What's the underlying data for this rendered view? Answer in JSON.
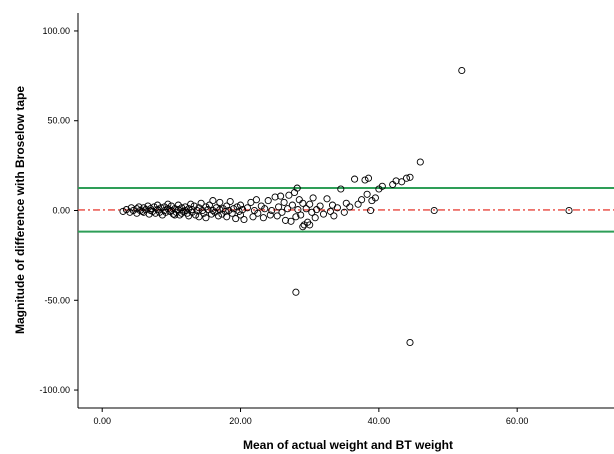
{
  "chart_data": {
    "type": "scatter",
    "title": "",
    "xlabel": "Mean of actual weight and BT weight",
    "ylabel": "Magnitude of difference with Broselow tape",
    "xlim": [
      -3.5,
      74.0
    ],
    "ylim": [
      -110.0,
      110.0
    ],
    "x_ticks": [
      0,
      20,
      40,
      60
    ],
    "x_tick_labels": [
      "0.00",
      "20.00",
      "40.00",
      "60.00"
    ],
    "y_ticks": [
      -100,
      -50,
      0,
      50,
      100
    ],
    "y_tick_labels": [
      "-100.00",
      "-50.00",
      "0.00",
      "50.00",
      "100.00"
    ],
    "grid": false,
    "reference_lines": [
      {
        "y": 12.5,
        "color": "#2e9e57",
        "style": "solid"
      },
      {
        "y": 0.3,
        "color": "#e8453c",
        "style": "dash-dot"
      },
      {
        "y": -11.8,
        "color": "#2e9e57",
        "style": "solid"
      }
    ],
    "marker_color": "#000000",
    "series": [
      {
        "points": [
          [
            3.0,
            -0.5
          ],
          [
            3.5,
            0.5
          ],
          [
            4.0,
            -1.0
          ],
          [
            4.2,
            1.5
          ],
          [
            4.5,
            0.0
          ],
          [
            5.0,
            1.0
          ],
          [
            5.0,
            -1.5
          ],
          [
            5.3,
            2.0
          ],
          [
            5.5,
            0.0
          ],
          [
            5.8,
            -0.5
          ],
          [
            6.0,
            1.5
          ],
          [
            6.0,
            -1.0
          ],
          [
            6.3,
            0.5
          ],
          [
            6.6,
            2.5
          ],
          [
            6.8,
            -2.0
          ],
          [
            7.0,
            0.0
          ],
          [
            7.0,
            1.0
          ],
          [
            7.3,
            -0.5
          ],
          [
            7.5,
            2.0
          ],
          [
            7.7,
            -1.5
          ],
          [
            8.0,
            0.5
          ],
          [
            8.0,
            3.0
          ],
          [
            8.3,
            -1.0
          ],
          [
            8.5,
            1.5
          ],
          [
            8.7,
            -2.5
          ],
          [
            9.0,
            0.0
          ],
          [
            9.0,
            2.0
          ],
          [
            9.2,
            -1.0
          ],
          [
            9.5,
            1.0
          ],
          [
            9.5,
            3.5
          ],
          [
            9.8,
            -0.5
          ],
          [
            10.0,
            0.0
          ],
          [
            10.0,
            2.5
          ],
          [
            10.3,
            -2.0
          ],
          [
            10.5,
            1.0
          ],
          [
            10.7,
            -1.0
          ],
          [
            11.0,
            0.5
          ],
          [
            11.0,
            3.0
          ],
          [
            11.2,
            -2.5
          ],
          [
            11.5,
            1.5
          ],
          [
            11.7,
            -0.5
          ],
          [
            12.0,
            0.0
          ],
          [
            12.0,
            2.0
          ],
          [
            12.3,
            -1.5
          ],
          [
            12.5,
            1.0
          ],
          [
            12.8,
            3.5
          ],
          [
            13.0,
            -1.0
          ],
          [
            13.0,
            0.5
          ],
          [
            13.3,
            2.5
          ],
          [
            13.5,
            -2.5
          ],
          [
            13.7,
            0.0
          ],
          [
            14.0,
            1.5
          ],
          [
            14.0,
            -3.5
          ],
          [
            14.3,
            4.0
          ],
          [
            14.5,
            0.0
          ],
          [
            14.7,
            -1.5
          ],
          [
            15.0,
            2.0
          ],
          [
            15.0,
            -4.0
          ],
          [
            15.3,
            0.5
          ],
          [
            15.5,
            3.0
          ],
          [
            15.8,
            -2.0
          ],
          [
            16.0,
            0.0
          ],
          [
            16.0,
            5.5
          ],
          [
            16.3,
            -1.0
          ],
          [
            16.5,
            1.5
          ],
          [
            16.8,
            -3.0
          ],
          [
            17.0,
            0.5
          ],
          [
            17.0,
            4.5
          ],
          [
            17.3,
            -2.0
          ],
          [
            17.5,
            1.0
          ],
          [
            17.8,
            -0.5
          ],
          [
            18.0,
            2.5
          ],
          [
            18.0,
            -3.5
          ],
          [
            18.3,
            0.0
          ],
          [
            18.5,
            5.0
          ],
          [
            18.8,
            -1.5
          ],
          [
            19.0,
            1.0
          ],
          [
            19.3,
            -4.5
          ],
          [
            19.5,
            2.0
          ],
          [
            19.8,
            -0.5
          ],
          [
            20.0,
            3.0
          ],
          [
            20.0,
            -2.5
          ],
          [
            20.3,
            0.5
          ],
          [
            20.5,
            -5.0
          ],
          [
            21.0,
            1.5
          ],
          [
            21.5,
            4.5
          ],
          [
            21.8,
            -3.5
          ],
          [
            22.0,
            0.0
          ],
          [
            22.3,
            6.0
          ],
          [
            22.5,
            -1.5
          ],
          [
            23.0,
            2.5
          ],
          [
            23.3,
            -4.0
          ],
          [
            23.5,
            1.0
          ],
          [
            24.0,
            5.5
          ],
          [
            24.3,
            -2.5
          ],
          [
            24.5,
            0.0
          ],
          [
            25.0,
            7.5
          ],
          [
            25.3,
            -3.0
          ],
          [
            25.5,
            2.0
          ],
          [
            25.8,
            8.0
          ],
          [
            26.0,
            -1.0
          ],
          [
            26.3,
            4.5
          ],
          [
            26.5,
            -5.5
          ],
          [
            26.8,
            1.0
          ],
          [
            27.0,
            8.5
          ],
          [
            27.3,
            -6.0
          ],
          [
            27.5,
            3.0
          ],
          [
            27.8,
            10.0
          ],
          [
            28.0,
            -3.5
          ],
          [
            28.2,
            12.5
          ],
          [
            28.3,
            0.5
          ],
          [
            28.5,
            6.0
          ],
          [
            28.7,
            -2.5
          ],
          [
            29.0,
            4.0
          ],
          [
            29.2,
            -8.0
          ],
          [
            29.5,
            1.0
          ],
          [
            29.7,
            -6.5
          ],
          [
            30.0,
            3.5
          ],
          [
            30.3,
            -1.0
          ],
          [
            30.5,
            7.0
          ],
          [
            30.8,
            -4.0
          ],
          [
            31.0,
            0.5
          ],
          [
            31.5,
            2.5
          ],
          [
            32.0,
            -2.0
          ],
          [
            32.5,
            6.5
          ],
          [
            33.0,
            -0.5
          ],
          [
            33.3,
            3.0
          ],
          [
            33.5,
            -3.0
          ],
          [
            34.0,
            1.5
          ],
          [
            34.5,
            12.0
          ],
          [
            35.0,
            -1.0
          ],
          [
            35.3,
            4.0
          ],
          [
            35.8,
            2.0
          ],
          [
            36.5,
            17.5
          ],
          [
            37.0,
            3.5
          ],
          [
            37.5,
            6.0
          ],
          [
            38.0,
            17.0
          ],
          [
            38.3,
            9.0
          ],
          [
            38.5,
            18.0
          ],
          [
            38.8,
            0.0
          ],
          [
            39.0,
            5.5
          ],
          [
            39.5,
            7.0
          ],
          [
            40.0,
            12.0
          ],
          [
            40.5,
            13.5
          ],
          [
            42.0,
            14.5
          ],
          [
            42.5,
            16.5
          ],
          [
            43.3,
            16.0
          ],
          [
            44.0,
            18.0
          ],
          [
            44.5,
            18.5
          ],
          [
            46.0,
            27.0
          ],
          [
            48.0,
            0.0
          ],
          [
            52.0,
            78.0
          ],
          [
            67.5,
            0.0
          ],
          [
            29.0,
            -9.0
          ],
          [
            30.0,
            -8.0
          ],
          [
            28.0,
            -45.5
          ],
          [
            44.5,
            -73.5
          ],
          [
            10.5,
            -2.5
          ],
          [
            11.5,
            -1.5
          ],
          [
            12.5,
            -3.0
          ]
        ]
      }
    ]
  }
}
